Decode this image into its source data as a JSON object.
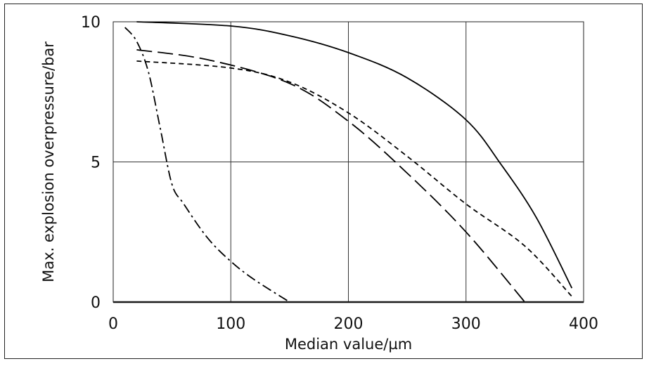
{
  "chart_data": {
    "type": "line",
    "title": "",
    "xlabel": "Median value/µm",
    "ylabel": "Max. explosion overpressure/bar",
    "xlim": [
      0,
      400
    ],
    "ylim": [
      0,
      10
    ],
    "xticks": [
      "0",
      "100",
      "200",
      "300",
      "400"
    ],
    "yticks": [
      "0",
      "5",
      "10"
    ],
    "grid": true,
    "legend": "none",
    "line_color": "#000000",
    "series": [
      {
        "style": "solid",
        "points": [
          [
            20,
            10.0
          ],
          [
            100,
            9.85
          ],
          [
            150,
            9.5
          ],
          [
            200,
            8.9
          ],
          [
            250,
            8.0
          ],
          [
            300,
            6.5
          ],
          [
            330,
            4.9
          ],
          [
            360,
            3.0
          ],
          [
            390,
            0.5
          ]
        ]
      },
      {
        "style": "long-dash",
        "points": [
          [
            20,
            9.0
          ],
          [
            80,
            8.65
          ],
          [
            150,
            7.8
          ],
          [
            200,
            6.45
          ],
          [
            250,
            4.6
          ],
          [
            300,
            2.5
          ],
          [
            350,
            0.0
          ]
        ]
      },
      {
        "style": "short-dash",
        "points": [
          [
            20,
            8.6
          ],
          [
            100,
            8.35
          ],
          [
            150,
            7.85
          ],
          [
            200,
            6.75
          ],
          [
            250,
            5.2
          ],
          [
            300,
            3.5
          ],
          [
            350,
            2.0
          ],
          [
            390,
            0.2
          ]
        ]
      },
      {
        "style": "dash-dot",
        "points": [
          [
            10,
            9.8
          ],
          [
            20,
            9.3
          ],
          [
            30,
            8.2
          ],
          [
            40,
            6.2
          ],
          [
            50,
            4.2
          ],
          [
            60,
            3.5
          ],
          [
            80,
            2.3
          ],
          [
            100,
            1.45
          ],
          [
            120,
            0.8
          ],
          [
            150,
            0.0
          ]
        ]
      }
    ]
  }
}
